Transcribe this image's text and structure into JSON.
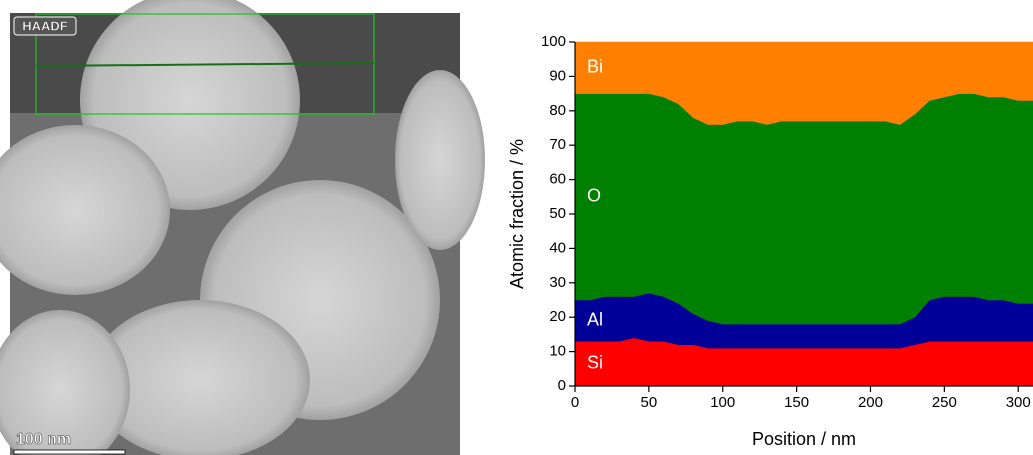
{
  "image": {
    "label": "HAADF",
    "scale_bar": "100 nm"
  },
  "chart_data": {
    "type": "stacked_area",
    "xlabel": "Position / nm",
    "ylabel": "Atomic fraction / %",
    "x": [
      0,
      10,
      20,
      30,
      40,
      50,
      60,
      70,
      80,
      90,
      100,
      110,
      120,
      130,
      140,
      150,
      160,
      170,
      180,
      190,
      200,
      210,
      220,
      230,
      240,
      250,
      260,
      270,
      280,
      290,
      300,
      310
    ],
    "series": [
      {
        "name": "Si",
        "color": "#ff0000",
        "values": [
          13,
          13,
          13,
          13,
          14,
          13,
          13,
          12,
          12,
          11,
          11,
          11,
          11,
          11,
          11,
          11,
          11,
          11,
          11,
          11,
          11,
          11,
          11,
          12,
          13,
          13,
          13,
          13,
          13,
          13,
          13,
          13
        ]
      },
      {
        "name": "Al",
        "color": "#000099",
        "values": [
          12,
          12,
          13,
          13,
          12,
          14,
          13,
          12,
          9,
          8,
          7,
          7,
          7,
          7,
          7,
          7,
          7,
          7,
          7,
          7,
          7,
          7,
          7,
          8,
          12,
          13,
          13,
          13,
          12,
          12,
          11,
          11
        ]
      },
      {
        "name": "O",
        "color": "#008000",
        "values": [
          60,
          60,
          59,
          59,
          59,
          58,
          58,
          58,
          57,
          57,
          58,
          59,
          59,
          58,
          59,
          59,
          59,
          59,
          59,
          59,
          59,
          59,
          58,
          59,
          58,
          58,
          59,
          59,
          59,
          59,
          59,
          59
        ]
      },
      {
        "name": "Bi",
        "color": "#ff8000",
        "values": [
          15,
          15,
          15,
          15,
          15,
          15,
          16,
          18,
          22,
          24,
          24,
          23,
          23,
          24,
          23,
          23,
          23,
          23,
          23,
          23,
          23,
          23,
          24,
          21,
          17,
          16,
          15,
          15,
          16,
          16,
          17,
          17
        ]
      }
    ],
    "xlim": [
      0,
      310
    ],
    "xticks": [
      0,
      50,
      100,
      150,
      200,
      250,
      300
    ],
    "ylim": [
      0,
      100
    ],
    "yticks": [
      0,
      10,
      20,
      30,
      40,
      50,
      60,
      70,
      80,
      90,
      100
    ]
  }
}
